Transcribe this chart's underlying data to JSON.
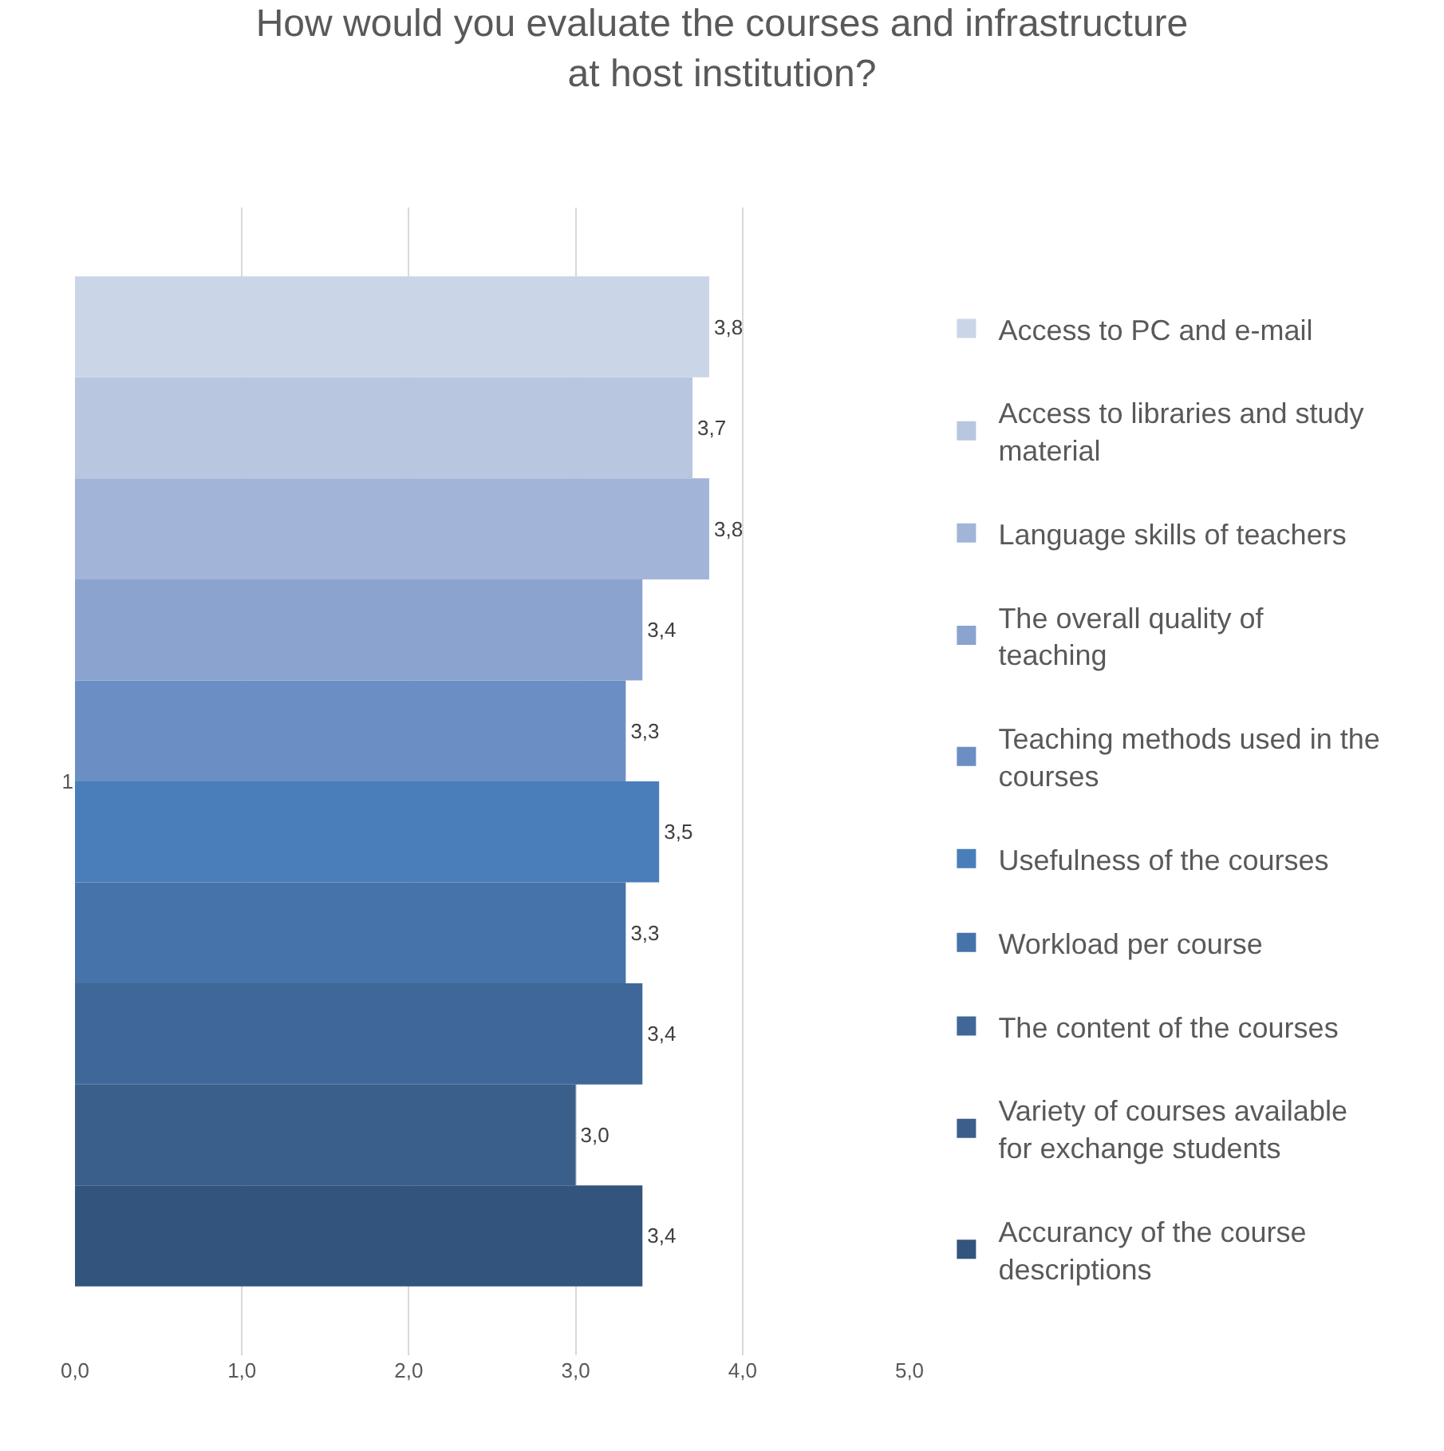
{
  "chart_data": {
    "type": "bar",
    "orientation": "horizontal",
    "title": "How would you evaluate the courses and infrastructure at host institution?",
    "categories": [
      "1"
    ],
    "series": [
      {
        "name": "Access to PC and e-mail",
        "color": "#cbd5e8",
        "values": [
          3.8
        ],
        "value_labels": [
          "3,8"
        ]
      },
      {
        "name": "Access to libraries and study material",
        "color": "#b8c6e0",
        "values": [
          3.7
        ],
        "value_labels": [
          "3,7"
        ]
      },
      {
        "name": "Language skills of teachers",
        "color": "#a2b4d8",
        "values": [
          3.8
        ],
        "value_labels": [
          "3,8"
        ]
      },
      {
        "name": "The overall quality of teaching",
        "color": "#8aa3cf",
        "values": [
          3.4
        ],
        "value_labels": [
          "3,4"
        ]
      },
      {
        "name": "Teaching methods used in the courses",
        "color": "#6b8fc4",
        "values": [
          3.3
        ],
        "value_labels": [
          "3,3"
        ]
      },
      {
        "name": "Usefulness of the courses",
        "color": "#4a7eba",
        "values": [
          3.5
        ],
        "value_labels": [
          "3,5"
        ]
      },
      {
        "name": "Workload per course",
        "color": "#4573aa",
        "values": [
          3.3
        ],
        "value_labels": [
          "3,3"
        ]
      },
      {
        "name": "The content of the courses",
        "color": "#3f6899",
        "values": [
          3.4
        ],
        "value_labels": [
          "3,4"
        ]
      },
      {
        "name": "Variety of courses available for exchange students",
        "color": "#3a5f8b",
        "values": [
          3.0
        ],
        "value_labels": [
          "3,0"
        ]
      },
      {
        "name": "Accurancy of the course descriptions",
        "color": "#33547c",
        "values": [
          3.4
        ],
        "value_labels": [
          "3,4"
        ]
      }
    ],
    "xlim": [
      0,
      5
    ],
    "xticks": [
      {
        "value": 0,
        "label": "0,0"
      },
      {
        "value": 1,
        "label": "1,0"
      },
      {
        "value": 2,
        "label": "2,0"
      },
      {
        "value": 3,
        "label": "3,0"
      },
      {
        "value": 4,
        "label": "4,0"
      },
      {
        "value": 5,
        "label": "5,0"
      }
    ],
    "grid": "x",
    "legend": "right"
  }
}
